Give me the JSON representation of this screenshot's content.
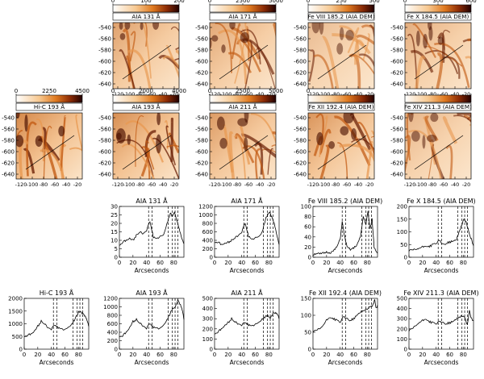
{
  "figure": {
    "image_panels": [
      {
        "id": "aia131",
        "title": "AIA 131 Å",
        "cbar_ticks": [
          "0",
          "100",
          "200"
        ],
        "row": 0,
        "col": 1,
        "seed": 3,
        "intensity": 0.55
      },
      {
        "id": "aia171",
        "title": "AIA 171 Å",
        "cbar_ticks": [
          "0",
          "2500",
          "5000"
        ],
        "row": 0,
        "col": 2,
        "seed": 7,
        "intensity": 0.5
      },
      {
        "id": "fe8",
        "title": "Fe VIII 185.2 (AIA DEM)",
        "cbar_ticks": [
          "0",
          "250",
          "500"
        ],
        "row": 0,
        "col": 3,
        "seed": 11,
        "intensity": 0.35
      },
      {
        "id": "fe10",
        "title": "Fe X 184.5 (AIA DEM)",
        "cbar_ticks": [
          "0",
          "300",
          "600"
        ],
        "row": 0,
        "col": 4,
        "seed": 13,
        "intensity": 0.45
      },
      {
        "id": "hic193",
        "title": "Hi-C 193 Å",
        "cbar_ticks": [
          "0",
          "2250",
          "4500"
        ],
        "row": 1,
        "col": 0,
        "seed": 17,
        "intensity": 0.75
      },
      {
        "id": "aia193",
        "title": "AIA 193 Å",
        "cbar_ticks": [
          "0",
          "2000",
          "4000"
        ],
        "row": 1,
        "col": 1,
        "seed": 19,
        "intensity": 0.7
      },
      {
        "id": "aia211",
        "title": "AIA 211 Å",
        "cbar_ticks": [
          "0",
          "2500",
          "5000"
        ],
        "row": 1,
        "col": 2,
        "seed": 23,
        "intensity": 0.6
      },
      {
        "id": "fe12",
        "title": "Fe XII 192.4 (AIA DEM)",
        "cbar_ticks": [
          "0",
          "",
          ""
        ],
        "row": 1,
        "col": 3,
        "seed": 29,
        "intensity": 0.65
      },
      {
        "id": "fe14",
        "title": "Fe XIV 211.3 (AIA DEM)",
        "cbar_ticks": [
          "",
          "",
          ""
        ],
        "row": 1,
        "col": 4,
        "seed": 31,
        "intensity": 0.4
      }
    ],
    "image_yticks": [
      "-540",
      "-560",
      "-580",
      "-600",
      "-620",
      "-640"
    ],
    "image_xticks": [
      "-120",
      "-100",
      "-80",
      "-60",
      "-40",
      "-20"
    ],
    "plot_xticks": [
      "0",
      "20",
      "40",
      "60",
      "80"
    ],
    "plot_xlabel": "Arcseconds",
    "dashed_positions": [
      43,
      48,
      72,
      78,
      82,
      86
    ],
    "line_panels": [
      {
        "id": "p131",
        "title": "AIA 131 Å",
        "row": 0,
        "col": 1,
        "ylim": [
          0,
          30
        ],
        "yticks": [
          "0",
          "5",
          "10",
          "15",
          "20",
          "25",
          "30"
        ],
        "x": [
          0,
          5,
          10,
          15,
          20,
          25,
          30,
          35,
          40,
          45,
          50,
          55,
          60,
          65,
          70,
          75,
          78,
          81,
          85,
          88,
          92,
          95
        ],
        "y": [
          7,
          9,
          10,
          11,
          10,
          13,
          15,
          14,
          16,
          21,
          12,
          11,
          12,
          13,
          20,
          26,
          24,
          27,
          21,
          17,
          11,
          8
        ]
      },
      {
        "id": "p171",
        "title": "AIA 171 Å",
        "row": 0,
        "col": 2,
        "ylim": [
          0,
          1200
        ],
        "yticks": [
          "0",
          "200",
          "400",
          "600",
          "800",
          "1000",
          "1200"
        ],
        "x": [
          0,
          5,
          10,
          15,
          20,
          25,
          30,
          35,
          40,
          45,
          50,
          55,
          60,
          65,
          70,
          75,
          78,
          81,
          84,
          88,
          92,
          95
        ],
        "y": [
          350,
          360,
          300,
          320,
          350,
          400,
          460,
          520,
          600,
          800,
          500,
          420,
          450,
          480,
          600,
          900,
          1000,
          1080,
          950,
          800,
          500,
          300
        ]
      },
      {
        "id": "pfe8",
        "title": "Fe VIII 185.2 (AIA DEM)",
        "row": 0,
        "col": 3,
        "ylim": [
          0,
          100
        ],
        "yticks": [
          "0",
          "20",
          "40",
          "60",
          "80",
          "100"
        ],
        "x": [
          0,
          5,
          10,
          15,
          20,
          25,
          30,
          35,
          40,
          43,
          46,
          50,
          55,
          60,
          65,
          70,
          74,
          78,
          81,
          84,
          87,
          90,
          95
        ],
        "y": [
          5,
          8,
          6,
          8,
          10,
          9,
          12,
          20,
          35,
          70,
          45,
          20,
          15,
          18,
          25,
          40,
          80,
          65,
          90,
          55,
          75,
          20,
          8
        ]
      },
      {
        "id": "pfe10",
        "title": "Fe X 184.5 (AIA DEM)",
        "row": 0,
        "col": 4,
        "ylim": [
          0,
          200
        ],
        "yticks": [
          "0",
          "50",
          "100",
          "150",
          "200"
        ],
        "x": [
          0,
          5,
          10,
          15,
          20,
          25,
          30,
          35,
          40,
          45,
          50,
          55,
          60,
          65,
          70,
          75,
          78,
          81,
          84,
          88,
          92,
          95
        ],
        "y": [
          25,
          28,
          30,
          35,
          40,
          45,
          42,
          50,
          55,
          65,
          50,
          55,
          60,
          62,
          70,
          110,
          130,
          150,
          140,
          100,
          70,
          45
        ]
      },
      {
        "id": "phic",
        "title": "Hi-C 193 Å",
        "row": 1,
        "col": 0,
        "ylim": [
          0,
          2000
        ],
        "yticks": [
          "0",
          "500",
          "1000",
          "1500",
          "2000"
        ],
        "x": [
          0,
          5,
          10,
          15,
          20,
          25,
          30,
          35,
          40,
          45,
          50,
          55,
          60,
          65,
          70,
          75,
          80,
          83,
          86,
          90,
          93,
          95
        ],
        "y": [
          500,
          550,
          600,
          700,
          900,
          1100,
          1000,
          850,
          800,
          950,
          850,
          800,
          750,
          850,
          1000,
          1200,
          1450,
          1500,
          1400,
          1300,
          1100,
          900
        ]
      },
      {
        "id": "p193",
        "title": "AIA 193 Å",
        "row": 1,
        "col": 1,
        "ylim": [
          0,
          1200
        ],
        "yticks": [
          "0",
          "200",
          "400",
          "600",
          "800",
          "1000",
          "1200"
        ],
        "x": [
          0,
          5,
          10,
          15,
          20,
          25,
          30,
          35,
          40,
          45,
          50,
          55,
          60,
          65,
          70,
          75,
          78,
          82,
          86,
          90,
          93,
          95
        ],
        "y": [
          300,
          320,
          400,
          500,
          650,
          700,
          620,
          550,
          500,
          600,
          520,
          500,
          480,
          560,
          700,
          850,
          950,
          1000,
          1150,
          1050,
          900,
          700
        ]
      },
      {
        "id": "p211",
        "title": "AIA 211 Å",
        "row": 1,
        "col": 2,
        "ylim": [
          0,
          500
        ],
        "yticks": [
          "0",
          "100",
          "200",
          "300",
          "400",
          "500"
        ],
        "x": [
          0,
          5,
          10,
          15,
          20,
          25,
          30,
          35,
          40,
          45,
          50,
          55,
          60,
          65,
          70,
          75,
          78,
          82,
          86,
          90,
          93,
          95
        ],
        "y": [
          150,
          170,
          200,
          230,
          260,
          300,
          270,
          250,
          240,
          260,
          240,
          230,
          240,
          260,
          300,
          320,
          330,
          310,
          350,
          360,
          340,
          300
        ]
      },
      {
        "id": "pfe12",
        "title": "Fe XII 192.4 (AIA DEM)",
        "row": 1,
        "col": 3,
        "ylim": [
          0,
          150
        ],
        "yticks": [
          "0",
          "50",
          "100",
          "150"
        ],
        "x": [
          0,
          5,
          10,
          15,
          20,
          25,
          30,
          35,
          40,
          45,
          50,
          55,
          60,
          65,
          70,
          75,
          80,
          85,
          88,
          91,
          93,
          95
        ],
        "y": [
          50,
          55,
          60,
          70,
          85,
          95,
          90,
          85,
          80,
          95,
          90,
          85,
          90,
          100,
          110,
          115,
          120,
          125,
          130,
          145,
          120,
          130
        ]
      },
      {
        "id": "pfe14",
        "title": "Fe XIV 211.3 (AIA DEM)",
        "row": 1,
        "col": 4,
        "ylim": [
          0,
          500
        ],
        "yticks": [
          "0",
          "100",
          "200",
          "300",
          "400",
          "500"
        ],
        "x": [
          0,
          5,
          10,
          15,
          20,
          25,
          30,
          35,
          40,
          45,
          50,
          55,
          60,
          65,
          70,
          75,
          78,
          82,
          86,
          89,
          92,
          95
        ],
        "y": [
          180,
          200,
          230,
          260,
          280,
          300,
          270,
          260,
          250,
          270,
          260,
          250,
          260,
          270,
          300,
          320,
          330,
          310,
          240,
          380,
          300,
          280
        ]
      }
    ]
  }
}
